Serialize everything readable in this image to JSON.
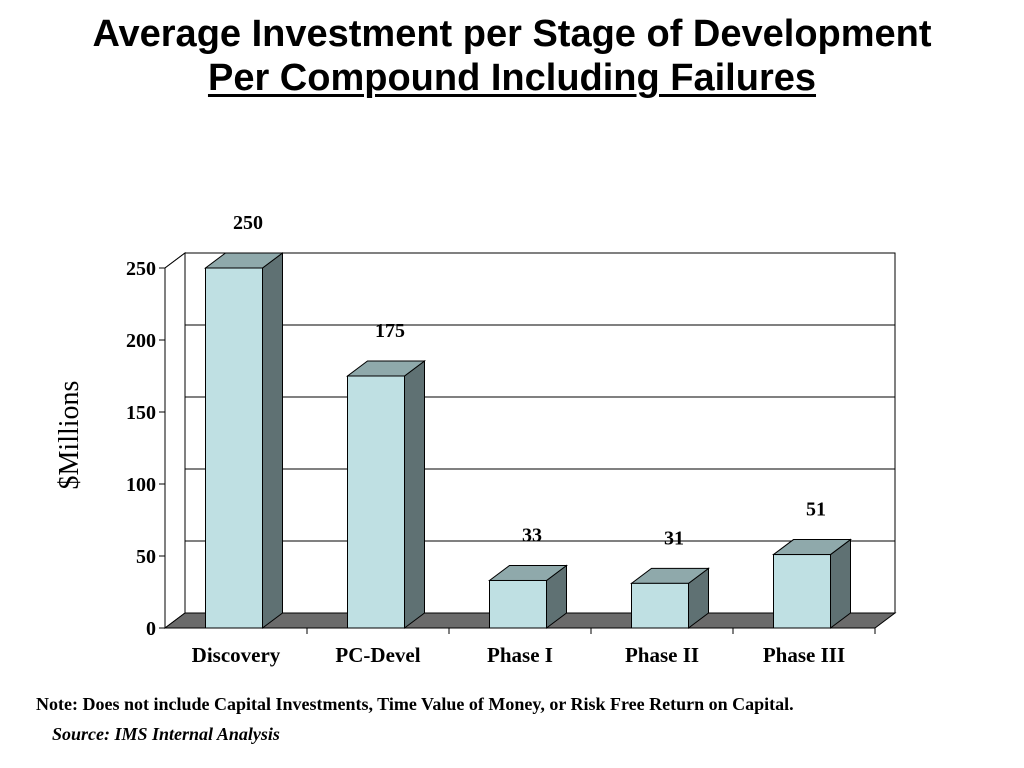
{
  "title": {
    "line1": "Average Investment per  Stage of Development",
    "line2": "Per Compound Including Failures"
  },
  "note": "Note:  Does not include Capital Investments, Time Value of Money, or Risk Free Return on Capital.",
  "source": "Source:  IMS Internal Analysis",
  "colors": {
    "bar_front": "#bfe0e3",
    "bar_side": "#5f7173",
    "bar_top": "#8fa9ab",
    "floor": "#6b6b6b",
    "gridline": "#000000"
  },
  "chart_data": {
    "type": "bar",
    "title": "Average Investment per  Stage of Development Per Compound Including Failures",
    "xlabel": "",
    "ylabel": "$Millions",
    "categories": [
      "Discovery",
      "PC-Devel",
      "Phase I",
      "Phase II",
      "Phase III"
    ],
    "values": [
      250,
      175,
      33,
      31,
      51
    ],
    "data_labels": [
      "250",
      "175",
      "33",
      "31",
      "51"
    ],
    "ylim": [
      0,
      250
    ],
    "yticks": [
      0,
      50,
      100,
      150,
      200,
      250
    ],
    "ytick_labels": [
      "0",
      "50",
      "100",
      "150",
      "200",
      "250"
    ],
    "grid": true,
    "style": "3d-column"
  }
}
